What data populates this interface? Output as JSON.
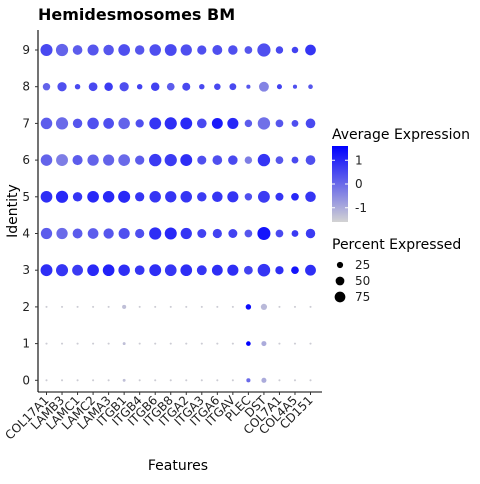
{
  "chart_data": {
    "type": "dotplot",
    "title": "Hemidesmosomes BM",
    "xlabel": "Features",
    "ylabel": "Identity",
    "features": [
      "COL17A1",
      "LAMB3",
      "LAMC1",
      "LAMC2",
      "LAMA3",
      "ITGB1",
      "ITGB4",
      "ITGB6",
      "ITGB8",
      "ITGA2",
      "ITGA3",
      "ITGA6",
      "ITGAV",
      "PLEC",
      "DST",
      "COL7A1",
      "COL4A5",
      "CD151"
    ],
    "identities": [
      "0",
      "1",
      "2",
      "3",
      "4",
      "5",
      "6",
      "7",
      "8",
      "9"
    ],
    "legend_color": {
      "title": "Average Expression",
      "ticks": [
        1,
        0,
        -1
      ],
      "range": [
        -1.6,
        1.6
      ],
      "low_color": "#d3d3d3",
      "high_color": "#0000ff"
    },
    "legend_size": {
      "title": "Percent Expressed",
      "ticks": [
        25,
        50,
        75
      ]
    },
    "rows": [
      {
        "identity": "0",
        "pct": [
          2,
          2,
          2,
          2,
          2,
          4,
          2,
          2,
          2,
          2,
          2,
          2,
          2,
          8,
          12,
          2,
          2,
          2
        ],
        "avg": [
          -1.5,
          -1.5,
          -1.5,
          -1.5,
          -1.5,
          -1.3,
          -1.5,
          -1.5,
          -1.5,
          -1.5,
          -1.5,
          -1.5,
          -1.5,
          0.0,
          -1.0,
          -1.5,
          -1.5,
          -1.5
        ]
      },
      {
        "identity": "1",
        "pct": [
          2,
          2,
          2,
          2,
          2,
          4,
          2,
          2,
          2,
          2,
          2,
          2,
          2,
          10,
          12,
          2,
          2,
          2
        ],
        "avg": [
          -1.5,
          -1.5,
          -1.5,
          -1.5,
          -1.5,
          -1.3,
          -1.5,
          -1.5,
          -1.5,
          -1.5,
          -1.5,
          -1.5,
          -1.5,
          1.6,
          -1.0,
          -1.5,
          -1.5,
          -1.5
        ]
      },
      {
        "identity": "2",
        "pct": [
          2,
          2,
          2,
          2,
          2,
          8,
          2,
          2,
          2,
          2,
          2,
          2,
          2,
          14,
          18,
          2,
          2,
          2
        ],
        "avg": [
          -1.5,
          -1.5,
          -1.5,
          -1.5,
          -1.5,
          -1.3,
          -1.5,
          -1.5,
          -1.5,
          -1.5,
          -1.5,
          -1.5,
          -1.5,
          1.4,
          -1.2,
          -1.5,
          -1.5,
          -1.5
        ]
      },
      {
        "identity": "3",
        "pct": [
          66,
          68,
          55,
          64,
          64,
          62,
          44,
          66,
          64,
          64,
          46,
          55,
          58,
          36,
          74,
          32,
          28,
          55
        ],
        "avg": [
          0.9,
          0.8,
          0.7,
          1.0,
          1.1,
          0.9,
          0.8,
          0.9,
          0.8,
          0.9,
          0.8,
          0.9,
          0.9,
          0.6,
          0.8,
          0.9,
          1.3,
          0.9
        ]
      },
      {
        "identity": "4",
        "pct": [
          60,
          60,
          46,
          54,
          50,
          58,
          40,
          70,
          68,
          60,
          38,
          40,
          38,
          28,
          80,
          28,
          22,
          42
        ],
        "avg": [
          0.2,
          0.0,
          0.2,
          0.2,
          0.3,
          0.4,
          0.4,
          0.9,
          1.0,
          0.8,
          0.6,
          0.6,
          0.6,
          0.3,
          1.3,
          0.5,
          0.7,
          0.7
        ]
      },
      {
        "identity": "5",
        "pct": [
          64,
          70,
          42,
          64,
          62,
          68,
          40,
          62,
          60,
          62,
          42,
          52,
          58,
          26,
          66,
          30,
          28,
          52
        ],
        "avg": [
          0.9,
          1.0,
          0.8,
          1.0,
          1.0,
          1.0,
          0.8,
          0.8,
          0.8,
          0.8,
          0.7,
          0.8,
          0.8,
          0.4,
          0.7,
          0.8,
          1.0,
          0.8
        ]
      },
      {
        "identity": "6",
        "pct": [
          62,
          66,
          48,
          60,
          58,
          64,
          40,
          72,
          70,
          66,
          38,
          44,
          42,
          26,
          72,
          28,
          22,
          44
        ],
        "avg": [
          0.1,
          -0.3,
          0.2,
          0.1,
          0.1,
          0.0,
          0.2,
          0.7,
          0.7,
          0.9,
          0.4,
          0.4,
          0.5,
          -0.3,
          0.8,
          0.3,
          0.5,
          0.4
        ]
      },
      {
        "identity": "7",
        "pct": [
          62,
          70,
          42,
          62,
          54,
          62,
          32,
          66,
          70,
          66,
          44,
          56,
          58,
          26,
          72,
          28,
          22,
          44
        ],
        "avg": [
          0.2,
          0.0,
          0.3,
          0.4,
          0.4,
          0.1,
          0.4,
          0.8,
          0.9,
          1.0,
          0.5,
          1.2,
          1.0,
          0.2,
          -0.1,
          0.3,
          0.4,
          0.5
        ]
      },
      {
        "identity": "8",
        "pct": [
          26,
          40,
          14,
          36,
          34,
          40,
          14,
          34,
          28,
          30,
          14,
          20,
          22,
          8,
          46,
          12,
          8,
          10
        ],
        "avg": [
          0.1,
          0.4,
          0.5,
          0.5,
          0.7,
          0.4,
          0.6,
          0.6,
          0.2,
          0.5,
          0.5,
          0.5,
          0.5,
          0.3,
          -0.4,
          0.6,
          0.4,
          0.3
        ]
      },
      {
        "identity": "9",
        "pct": [
          68,
          70,
          44,
          58,
          52,
          64,
          42,
          62,
          66,
          60,
          40,
          46,
          42,
          28,
          82,
          26,
          20,
          54
        ],
        "avg": [
          0.5,
          0.1,
          0.2,
          0.3,
          0.3,
          0.4,
          0.3,
          0.4,
          0.5,
          0.4,
          0.4,
          0.4,
          0.4,
          0.3,
          0.4,
          0.5,
          0.6,
          0.8
        ]
      }
    ]
  }
}
